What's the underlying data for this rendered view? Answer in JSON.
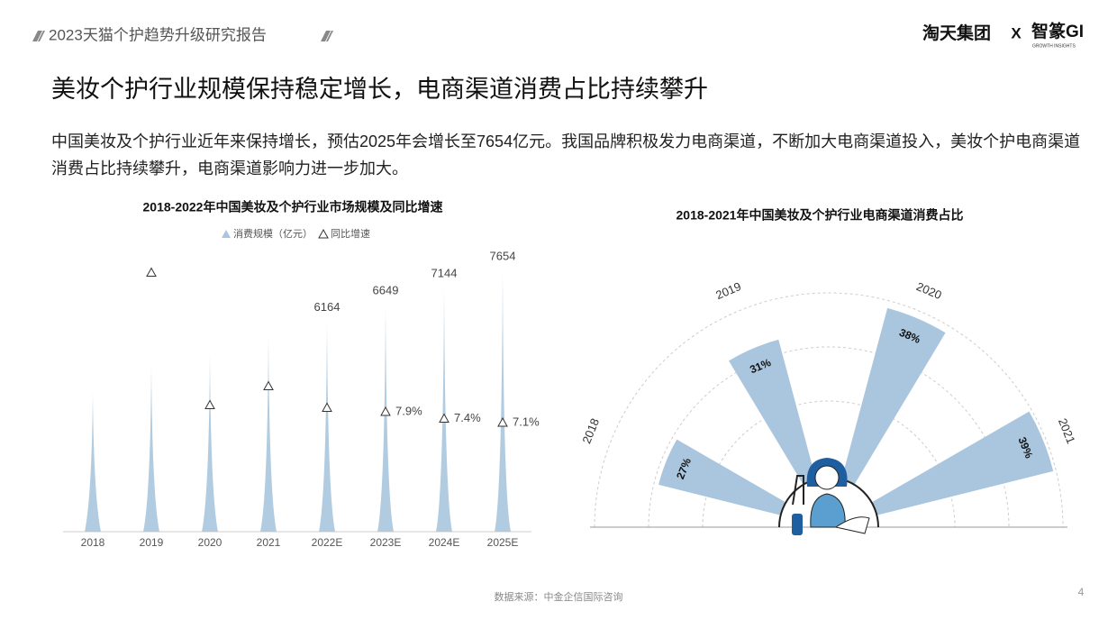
{
  "header": {
    "report": "2023天猫个护趋势升级研究报告",
    "brand": "淘天集团",
    "separator": "X",
    "partner": "智篆GI",
    "partner_tagline": "GROWTH INSIGHTS"
  },
  "title": "美妆个护行业规模保持稳定增长，电商渠道消费占比持续攀升",
  "description": "中国美妆及个护行业近年来保持增长，预估2025年会增长至7654亿元。我国品牌积极发力电商渠道，不断加大电商渠道投入，美妆个护电商渠道消费占比持续攀升，电商渠道影响力进一步加大。",
  "chart_data": [
    {
      "type": "spike-bar",
      "title": "2018-2022年中国美妆及个护行业市场规模及同比增速",
      "categories": [
        "2018",
        "2019",
        "2020",
        "2021",
        "2022E",
        "2023E",
        "2024E",
        "2025E"
      ],
      "series": [
        {
          "name": "消费规模（亿元）",
          "color": "#a9c6de",
          "values": [
            4090,
            4880,
            5200,
            5730,
            6164,
            6649,
            7144,
            7654
          ],
          "value_labels": [
            null,
            null,
            null,
            null,
            "6164",
            "6649",
            "7144",
            "7654"
          ]
        },
        {
          "name": "同比增速",
          "color": "#333333",
          "values": [
            null,
            18.2,
            8.4,
            9.8,
            8.2,
            7.9,
            7.4,
            7.1
          ],
          "value_labels": [
            null,
            null,
            null,
            null,
            null,
            "7.9%",
            "7.4%",
            "7.1%"
          ]
        }
      ]
    },
    {
      "type": "polar-bar",
      "title": "2018-2021年中国美妆及个护行业电商渠道消费占比",
      "categories": [
        "2018",
        "2019",
        "2020",
        "2021"
      ],
      "values": [
        27,
        31,
        38,
        39
      ],
      "value_labels": [
        "27%",
        "31%",
        "38%",
        "39%"
      ],
      "color": "#a9c6de"
    }
  ],
  "source": "数据来源：中金企信国际咨询",
  "page_number": "4"
}
